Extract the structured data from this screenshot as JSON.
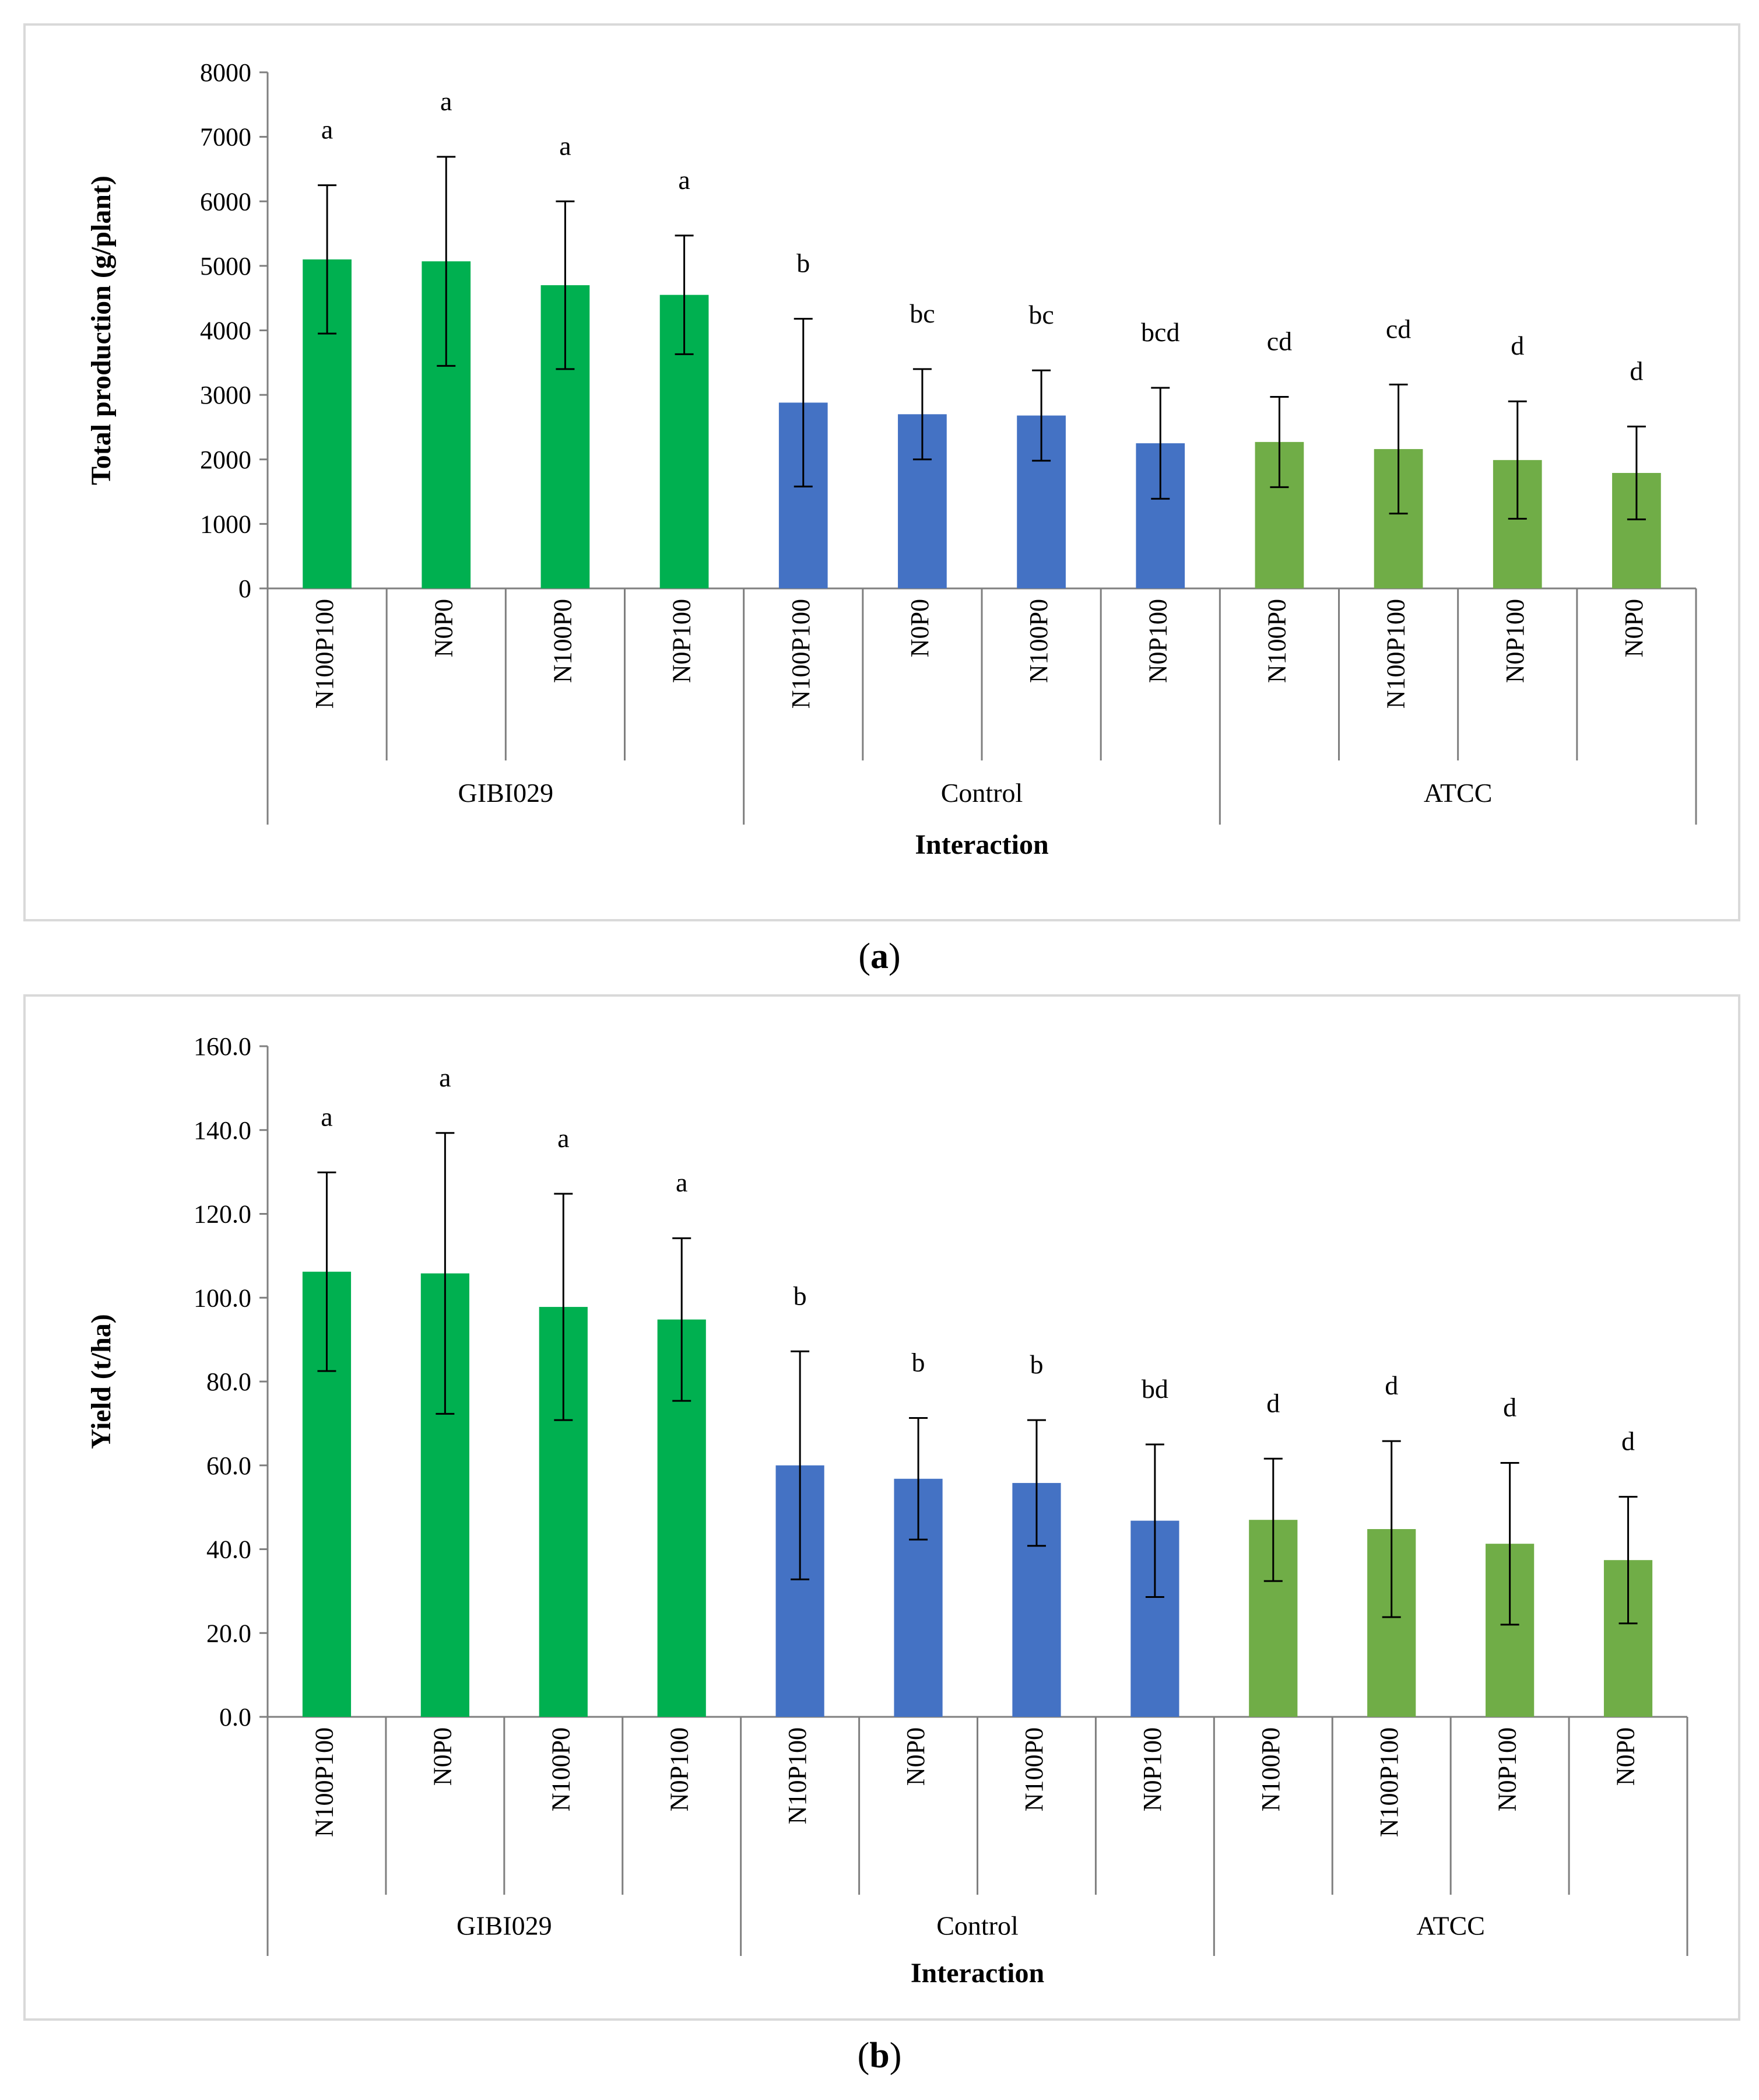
{
  "charts": [
    {
      "panel_label": "a",
      "chart_data": {
        "type": "bar",
        "ylabel": "Total production (g/plant)",
        "xlabel": "Interaction",
        "ylim": [
          0,
          8000
        ],
        "yticks": [
          0,
          1000,
          2000,
          3000,
          4000,
          5000,
          6000,
          7000,
          8000
        ],
        "ytick_labels": [
          "0",
          "1000",
          "2000",
          "3000",
          "4000",
          "5000",
          "6000",
          "7000",
          "8000"
        ],
        "groups": [
          {
            "name": "GIBI029",
            "color": "#00b050",
            "categories": [
              "N100P100",
              "N0P0",
              "N100P0",
              "N0P100"
            ],
            "values": [
              5100,
              5070,
              4700,
              4550
            ],
            "errors": [
              1150,
              1620,
              1300,
              920
            ],
            "letters": [
              "a",
              "a",
              "a",
              "a"
            ]
          },
          {
            "name": "Control",
            "color": "#4472c4",
            "categories": [
              "N100P100",
              "N0P0",
              "N100P0",
              "N0P100"
            ],
            "values": [
              2880,
              2700,
              2680,
              2250
            ],
            "errors": [
              1300,
              700,
              700,
              860
            ],
            "letters": [
              "b",
              "bc",
              "bc",
              "bcd"
            ]
          },
          {
            "name": "ATCC",
            "color": "#70ad47",
            "categories": [
              "N100P0",
              "N100P100",
              "N0P100",
              "N0P0"
            ],
            "values": [
              2270,
              2160,
              1990,
              1790
            ],
            "errors": [
              700,
              1000,
              910,
              720
            ],
            "letters": [
              "cd",
              "cd",
              "d",
              "d"
            ]
          }
        ]
      }
    },
    {
      "panel_label": "b",
      "chart_data": {
        "type": "bar",
        "ylabel": "Yield (t/ha)",
        "xlabel": "Interaction",
        "ylim": [
          0,
          160
        ],
        "yticks": [
          0,
          20,
          40,
          60,
          80,
          100,
          120,
          140,
          160
        ],
        "ytick_labels": [
          "0.0",
          "20.0",
          "40.0",
          "60.0",
          "80.0",
          "100.0",
          "120.0",
          "140.0",
          "160.0"
        ],
        "groups": [
          {
            "name": "GIBI029",
            "color": "#00b050",
            "categories": [
              "N100P100",
              "N0P0",
              "N100P0",
              "N0P100"
            ],
            "values": [
              106.2,
              105.8,
              97.8,
              94.8
            ],
            "errors": [
              23.7,
              33.5,
              27.0,
              19.4
            ],
            "letters": [
              "a",
              "a",
              "a",
              "a"
            ]
          },
          {
            "name": "Control",
            "color": "#4472c4",
            "categories": [
              "N10P100",
              "N0P0",
              "N100P0",
              "N0P100"
            ],
            "values": [
              60.0,
              56.8,
              55.8,
              46.8
            ],
            "errors": [
              27.2,
              14.5,
              15.0,
              18.2
            ],
            "letters": [
              "b",
              "b",
              "b",
              "bd"
            ]
          },
          {
            "name": "ATCC",
            "color": "#70ad47",
            "categories": [
              "N100P0",
              "N100P100",
              "N0P100",
              "N0P0"
            ],
            "values": [
              47.0,
              44.8,
              41.3,
              37.4
            ],
            "errors": [
              14.6,
              21.0,
              19.3,
              15.1
            ],
            "letters": [
              "d",
              "d",
              "d",
              "d"
            ]
          }
        ]
      }
    }
  ]
}
